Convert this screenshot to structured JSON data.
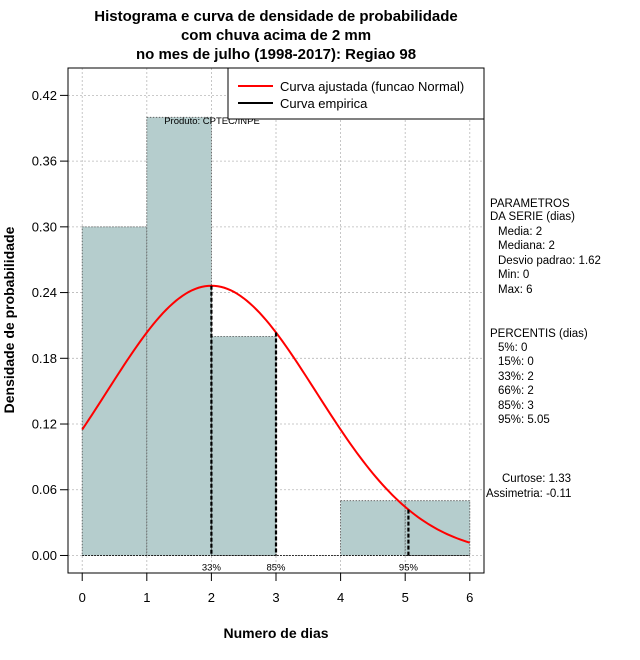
{
  "chart_data": {
    "type": "bar",
    "title": [
      "Histograma e curva de densidade de probabilidade",
      "com chuva acima de 2 mm",
      "no mes de julho (1998-2017): Regiao 98"
    ],
    "xlabel": "Numero de dias",
    "ylabel": "Densidade de probabilidade",
    "xlim": [
      -0.22,
      6.22
    ],
    "ylim": [
      -0.016,
      0.445
    ],
    "x_ticks": [
      "0",
      "1",
      "2",
      "3",
      "4",
      "5",
      "6"
    ],
    "y_ticks": [
      "0.00",
      "0.06",
      "0.12",
      "0.18",
      "0.24",
      "0.30",
      "0.36",
      "0.42"
    ],
    "bins": [
      {
        "x0": 0,
        "x1": 1,
        "density": 0.3
      },
      {
        "x0": 1,
        "x1": 2,
        "density": 0.4
      },
      {
        "x0": 2,
        "x1": 3,
        "density": 0.2
      },
      {
        "x0": 3,
        "x1": 4,
        "density": 0.0
      },
      {
        "x0": 4,
        "x1": 5,
        "density": 0.05
      },
      {
        "x0": 5,
        "x1": 6,
        "density": 0.05
      }
    ],
    "fitted_curve": {
      "name": "Curva ajustada (funcao Normal)",
      "distribution": "normal",
      "mean": 2,
      "sd": 1.62,
      "x_range": [
        0,
        6
      ],
      "color": "#ff0000"
    },
    "empirical_curve": {
      "name": "Curva empirica",
      "color": "#000000"
    },
    "percentile_markers": [
      {
        "label": "33%",
        "x": 2
      },
      {
        "label": "85%",
        "x": 3
      },
      {
        "label": "95%",
        "x": 5.05
      }
    ],
    "annotation": "Produto: CPTEC/INPE",
    "legend_position": "top-right",
    "grid": true,
    "colors": {
      "bar_fill": "#b5cdcd",
      "fitted": "#ff0000",
      "empirical": "#000000",
      "grid": "#b8b8b8"
    }
  },
  "side_panel": {
    "params_title_1": "PARAMETROS",
    "params_title_2": "DA SERIE (dias)",
    "media": "Media: 2",
    "mediana": "Mediana: 2",
    "desvio": "Desvio padrao: 1.62",
    "min": "Min: 0",
    "max": "Max: 6",
    "percentis_title": "PERCENTIS (dias)",
    "p5": "5%: 0",
    "p15": "15%: 0",
    "p33": "33%: 2",
    "p66": "66%: 2",
    "p85": "85%: 3",
    "p95": "95%: 5.05",
    "curtose": "Curtose: 1.33",
    "assimetria": "Assimetria: -0.11"
  }
}
